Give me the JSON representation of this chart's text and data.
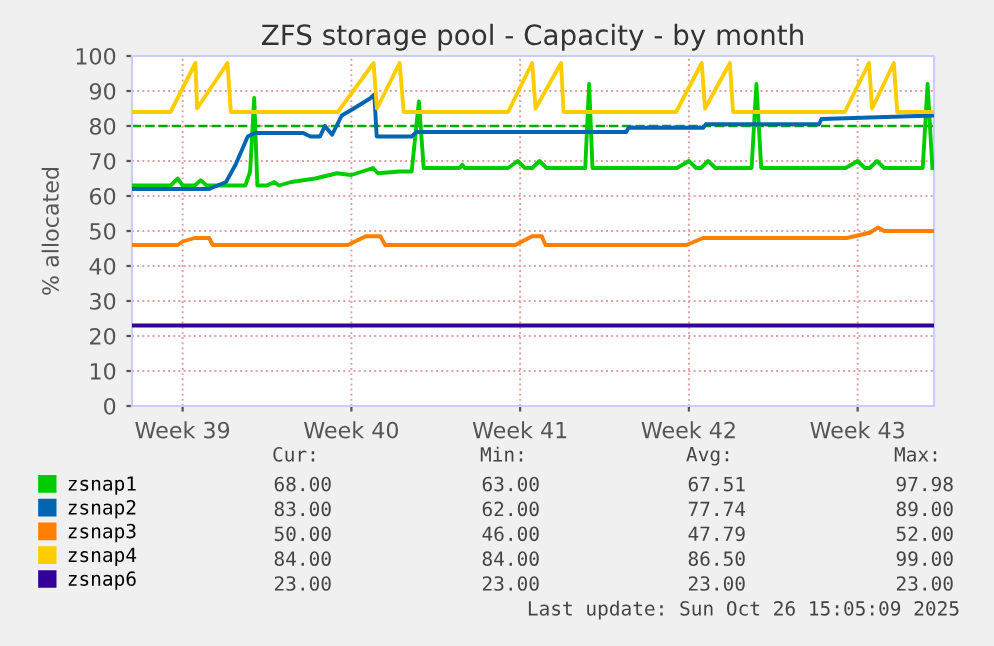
{
  "chart_data": {
    "type": "line",
    "title": "ZFS storage pool - Capacity - by month",
    "ylabel": "% allocated",
    "xlim": [
      "2025-09-23T09:36",
      "2025-10-26T16:00"
    ],
    "ylim": [
      0,
      100
    ],
    "yticks": [
      0,
      10,
      20,
      30,
      40,
      50,
      60,
      70,
      80,
      90,
      100
    ],
    "xticks": [
      {
        "value": "2025-09-25T12:00",
        "label": "Week 39"
      },
      {
        "value": "2025-10-02T12:00",
        "label": "Week 40"
      },
      {
        "value": "2025-10-09T12:00",
        "label": "Week 41"
      },
      {
        "value": "2025-10-16T12:00",
        "label": "Week 42"
      },
      {
        "value": "2025-10-23T12:00",
        "label": "Week 43"
      }
    ],
    "grid": true,
    "legend": "bottom",
    "marker": "none",
    "line_style": "solid",
    "ref_lines": [
      {
        "axis": "y",
        "value": 80,
        "color": "#00aa00",
        "line_style": "dashed"
      }
    ],
    "series": [
      {
        "name": "zsnap1",
        "color": "#00cc00",
        "x": [
          "2025-09-23T10:00",
          "2025-09-25T00:00",
          "2025-09-25T07:12",
          "2025-09-25T12:00",
          "2025-09-26T00:00",
          "2025-09-26T06:00",
          "2025-09-26T12:00",
          "2025-09-28T02:24",
          "2025-09-28T07:12",
          "2025-09-28T11:15",
          "2025-09-28T14:24",
          "2025-09-29T00:00",
          "2025-09-29T07:12",
          "2025-09-29T12:00",
          "2025-09-30T00:00",
          "2025-10-01T00:00",
          "2025-10-01T21:36",
          "2025-10-02T12:00",
          "2025-10-03T09:36",
          "2025-10-03T14:24",
          "2025-10-04T12:00",
          "2025-10-05T00:00",
          "2025-10-05T07:12",
          "2025-10-05T12:00",
          "2025-10-07T00:00",
          "2025-10-07T02:24",
          "2025-10-07T04:48",
          "2025-10-09T00:00",
          "2025-10-09T09:36",
          "2025-10-09T16:48",
          "2025-10-10T00:00",
          "2025-10-10T07:12",
          "2025-10-10T14:24",
          "2025-10-12T04:48",
          "2025-10-12T08:40",
          "2025-10-12T12:00",
          "2025-10-16T00:00",
          "2025-10-16T12:00",
          "2025-10-16T19:12",
          "2025-10-17T00:00",
          "2025-10-17T07:12",
          "2025-10-17T14:24",
          "2025-10-19T02:24",
          "2025-10-19T07:12",
          "2025-10-19T12:00",
          "2025-10-23T00:00",
          "2025-10-23T12:00",
          "2025-10-23T19:12",
          "2025-10-24T00:00",
          "2025-10-24T07:12",
          "2025-10-24T14:24",
          "2025-10-26T04:48",
          "2025-10-26T09:36",
          "2025-10-26T14:24"
        ],
        "values": [
          63,
          63,
          65,
          63,
          63,
          64.5,
          63,
          63,
          67,
          88,
          63,
          63,
          64,
          63,
          64,
          65,
          66.5,
          66,
          68,
          66.5,
          67,
          67,
          87,
          68,
          68,
          69,
          68,
          68,
          70,
          68,
          68,
          70,
          68,
          68,
          92,
          68,
          68,
          70,
          68,
          68,
          70,
          68,
          68,
          92,
          68,
          68,
          70,
          68,
          68,
          70,
          68,
          68,
          92,
          68
        ]
      },
      {
        "name": "zsnap2",
        "color": "#0066b3",
        "x": [
          "2025-09-23T10:00",
          "2025-09-26T14:24",
          "2025-09-27T07:12",
          "2025-09-27T16:48",
          "2025-09-28T04:48",
          "2025-09-28T12:00",
          "2025-09-30T12:00",
          "2025-09-30T19:12",
          "2025-10-01T04:48",
          "2025-10-01T09:36",
          "2025-10-01T16:48",
          "2025-10-02T02:24",
          "2025-10-02T14:24",
          "2025-10-03T07:12",
          "2025-10-03T10:48",
          "2025-10-03T13:12",
          "2025-10-05T00:00",
          "2025-10-05T04:48",
          "2025-10-13T21:36",
          "2025-10-14T00:00",
          "2025-10-17T02:24",
          "2025-10-17T04:48",
          "2025-10-21T21:36",
          "2025-10-22T00:00",
          "2025-10-26T16:00"
        ],
        "values": [
          62,
          62,
          64,
          69,
          77,
          78,
          78,
          77,
          77,
          80,
          77.5,
          83,
          85,
          88,
          89,
          77,
          77,
          78.3,
          78.3,
          79.5,
          79.5,
          80.5,
          80.5,
          82,
          83
        ]
      },
      {
        "name": "zsnap3",
        "color": "#ff8000",
        "x": [
          "2025-09-23T10:00",
          "2025-09-25T07:12",
          "2025-09-25T12:00",
          "2025-09-26T00:00",
          "2025-09-26T14:24",
          "2025-09-26T18:00",
          "2025-10-02T08:24",
          "2025-10-03T02:24",
          "2025-10-03T16:48",
          "2025-10-03T21:36",
          "2025-10-09T07:12",
          "2025-10-10T00:00",
          "2025-10-10T09:36",
          "2025-10-10T13:12",
          "2025-10-16T09:36",
          "2025-10-17T02:00",
          "2025-10-23T01:12",
          "2025-10-24T00:00",
          "2025-10-24T08:24",
          "2025-10-24T14:24",
          "2025-10-26T16:00"
        ],
        "values": [
          46,
          46,
          47,
          48,
          48,
          46,
          46,
          48.5,
          48.5,
          46,
          46,
          48.5,
          48.5,
          46,
          46,
          48,
          48,
          49.5,
          51,
          50,
          50
        ]
      },
      {
        "name": "zsnap4",
        "color": "#ffcc00",
        "x": [
          "2025-09-23T10:00",
          "2025-09-25T00:00",
          "2025-09-26T00:45",
          "2025-09-26T02:24",
          "2025-09-27T08:40",
          "2025-09-27T12:00",
          "2025-10-01T22:30",
          "2025-10-03T10:05",
          "2025-10-03T13:25",
          "2025-10-04T12:00",
          "2025-10-04T16:05",
          "2025-10-09T00:00",
          "2025-10-10T00:00",
          "2025-10-10T03:20",
          "2025-10-11T04:48",
          "2025-10-11T07:12",
          "2025-10-15T23:15",
          "2025-10-17T00:45",
          "2025-10-17T04:05",
          "2025-10-18T04:48",
          "2025-10-18T07:55",
          "2025-10-22T23:15",
          "2025-10-23T23:15",
          "2025-10-24T02:24",
          "2025-10-25T00:00",
          "2025-10-25T03:20",
          "2025-10-26T16:00"
        ],
        "values": [
          84,
          84,
          98,
          85,
          98,
          84,
          84,
          98,
          85,
          98,
          84,
          84,
          98,
          85,
          98,
          84,
          84,
          98,
          85,
          98,
          84,
          84,
          98,
          85,
          98,
          84,
          84
        ]
      },
      {
        "name": "zsnap6",
        "color": "#330099",
        "x": [
          "2025-09-23T10:00",
          "2025-10-26T16:00"
        ],
        "values": [
          23,
          23
        ]
      }
    ],
    "annotations": [
      "Cur:",
      "Min:",
      "Avg:",
      "Max:",
      "68.00",
      "63.00",
      "67.51",
      "97.98",
      "83.00",
      "62.00",
      "77.74",
      "89.00",
      "50.00",
      "46.00",
      "47.79",
      "52.00",
      "84.00",
      "84.00",
      "86.50",
      "99.00",
      "23.00",
      "23.00",
      "23.00",
      "23.00",
      "Last update: Sun Oct 26 15:05:09 2025"
    ]
  }
}
